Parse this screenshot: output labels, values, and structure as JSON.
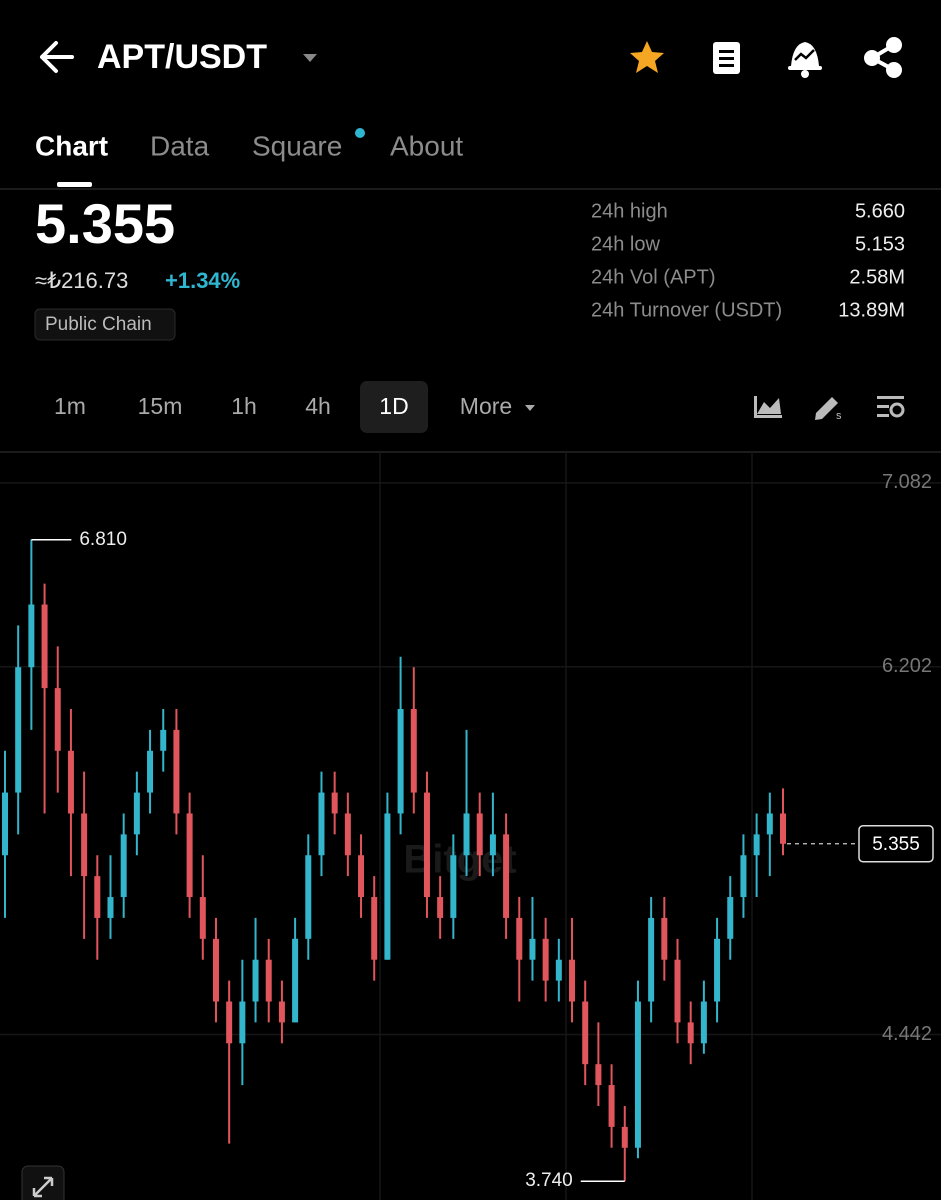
{
  "header": {
    "title": "APT/USDT",
    "tabs": [
      "Chart",
      "Data",
      "Square",
      "About"
    ]
  },
  "summary": {
    "price": "5.355",
    "converted": "≈₺216.73",
    "change": "+1.34%",
    "tag": "Public Chain",
    "stats": [
      [
        "24h high",
        "5.660"
      ],
      [
        "24h low",
        "5.153"
      ],
      [
        "24h Vol (APT)",
        "2.58M"
      ],
      [
        "24h Turnover (USDT)",
        "13.89M"
      ]
    ]
  },
  "intervals": [
    "1m",
    "15m",
    "1h",
    "4h",
    "1D",
    "More"
  ],
  "watermark": "Bitget",
  "chart_data": {
    "type": "candlestick",
    "ylim": [
      3.65,
      7.23
    ],
    "yticks": [
      7.082,
      6.202,
      4.442
    ],
    "grid": true,
    "up_color": "#33b5cc",
    "down_color": "#e0565c",
    "open": [
      5.3,
      5.6,
      6.2,
      6.5,
      6.1,
      5.8,
      5.5,
      5.2,
      5.0,
      5.1,
      5.4,
      5.6,
      5.8,
      5.9,
      5.5,
      5.1,
      4.9,
      4.6,
      4.4,
      4.6,
      4.8,
      4.6,
      4.5,
      4.9,
      5.3,
      5.6,
      5.5,
      5.3,
      5.1,
      4.8,
      5.5,
      6.0,
      5.6,
      5.1,
      5.0,
      5.3,
      5.5,
      5.3,
      5.4,
      5.0,
      4.8,
      4.9,
      4.7,
      4.8,
      4.6,
      4.3,
      4.2,
      4.0,
      3.9,
      4.6,
      5.0,
      4.8,
      4.5,
      4.4,
      4.6,
      4.9,
      5.1,
      5.3,
      5.4,
      5.5
    ],
    "high": [
      5.8,
      6.4,
      6.81,
      6.6,
      6.3,
      6.0,
      5.7,
      5.3,
      5.3,
      5.5,
      5.7,
      5.9,
      6.0,
      6.0,
      5.6,
      5.3,
      5.0,
      4.7,
      4.8,
      5.0,
      4.9,
      4.7,
      5.0,
      5.4,
      5.7,
      5.7,
      5.6,
      5.4,
      5.2,
      5.6,
      6.25,
      6.2,
      5.7,
      5.2,
      5.4,
      5.9,
      5.6,
      5.6,
      5.5,
      5.1,
      5.1,
      5.0,
      4.9,
      5.0,
      4.7,
      4.5,
      4.3,
      4.1,
      4.7,
      5.1,
      5.1,
      4.9,
      4.6,
      4.7,
      5.0,
      5.2,
      5.4,
      5.5,
      5.6,
      5.62
    ],
    "low": [
      5.0,
      5.4,
      5.9,
      5.5,
      5.6,
      5.2,
      4.9,
      4.8,
      4.9,
      5.0,
      5.3,
      5.5,
      5.7,
      5.4,
      5.0,
      4.8,
      4.5,
      3.92,
      4.2,
      4.5,
      4.5,
      4.4,
      4.5,
      4.8,
      5.2,
      5.4,
      5.2,
      5.0,
      4.7,
      4.8,
      5.4,
      5.5,
      5.0,
      4.9,
      4.9,
      5.2,
      5.2,
      5.2,
      4.9,
      4.6,
      4.7,
      4.6,
      4.6,
      4.5,
      4.2,
      4.1,
      3.9,
      3.74,
      3.85,
      4.5,
      4.7,
      4.4,
      4.3,
      4.35,
      4.5,
      4.8,
      5.0,
      5.1,
      5.2,
      5.3
    ],
    "close": [
      5.6,
      6.2,
      6.5,
      6.1,
      5.8,
      5.5,
      5.2,
      5.0,
      5.1,
      5.4,
      5.6,
      5.8,
      5.9,
      5.5,
      5.1,
      4.9,
      4.6,
      4.4,
      4.6,
      4.8,
      4.6,
      4.5,
      4.9,
      5.3,
      5.6,
      5.5,
      5.3,
      5.1,
      4.8,
      5.5,
      6.0,
      5.6,
      5.1,
      5.0,
      5.3,
      5.5,
      5.3,
      5.4,
      5.0,
      4.8,
      4.9,
      4.7,
      4.8,
      4.6,
      4.3,
      4.2,
      4.0,
      3.9,
      4.6,
      5.0,
      4.8,
      4.5,
      4.4,
      4.6,
      4.9,
      5.1,
      5.3,
      5.4,
      5.5,
      5.355
    ],
    "annotations": [
      {
        "value": 6.81,
        "label": "6.810"
      },
      {
        "value": 3.74,
        "label": "3.740"
      }
    ],
    "last_price": 5.355
  }
}
